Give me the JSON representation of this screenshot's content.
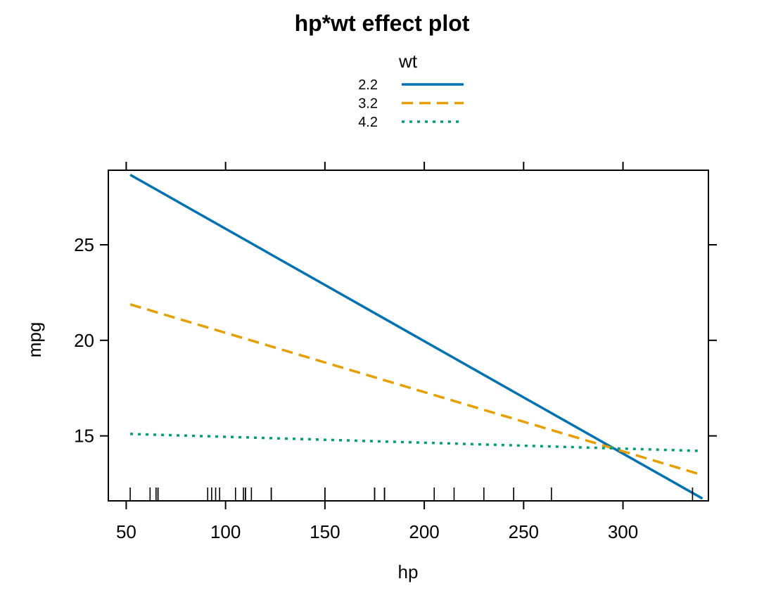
{
  "chart_data": {
    "type": "line",
    "title": "hp*wt effect plot",
    "xlabel": "hp",
    "ylabel": "mpg",
    "xlim": [
      41,
      343
    ],
    "ylim": [
      11.6,
      28.9
    ],
    "x_ticks": [
      50,
      100,
      150,
      200,
      250,
      300
    ],
    "y_ticks": [
      15,
      20,
      25
    ],
    "legend": {
      "title": "wt",
      "placement": "top-center"
    },
    "series": [
      {
        "name": "2.2",
        "color": "#0072B2",
        "dash": "solid",
        "x": [
          52,
          340
        ],
        "y": [
          28.66,
          11.72
        ]
      },
      {
        "name": "3.2",
        "color": "#E69F00",
        "dash": "dashed",
        "x": [
          52,
          340
        ],
        "y": [
          21.88,
          12.95
        ]
      },
      {
        "name": "4.2",
        "color": "#009E73",
        "dash": "dotted",
        "x": [
          52,
          340
        ],
        "y": [
          15.1,
          14.21
        ]
      }
    ],
    "rug": [
      52,
      62,
      65,
      66,
      66,
      91,
      93,
      95,
      97,
      105,
      109,
      110,
      110,
      113,
      123,
      123,
      150,
      150,
      175,
      175,
      180,
      180,
      180,
      205,
      215,
      230,
      245,
      245,
      264,
      335
    ],
    "grid": false
  }
}
